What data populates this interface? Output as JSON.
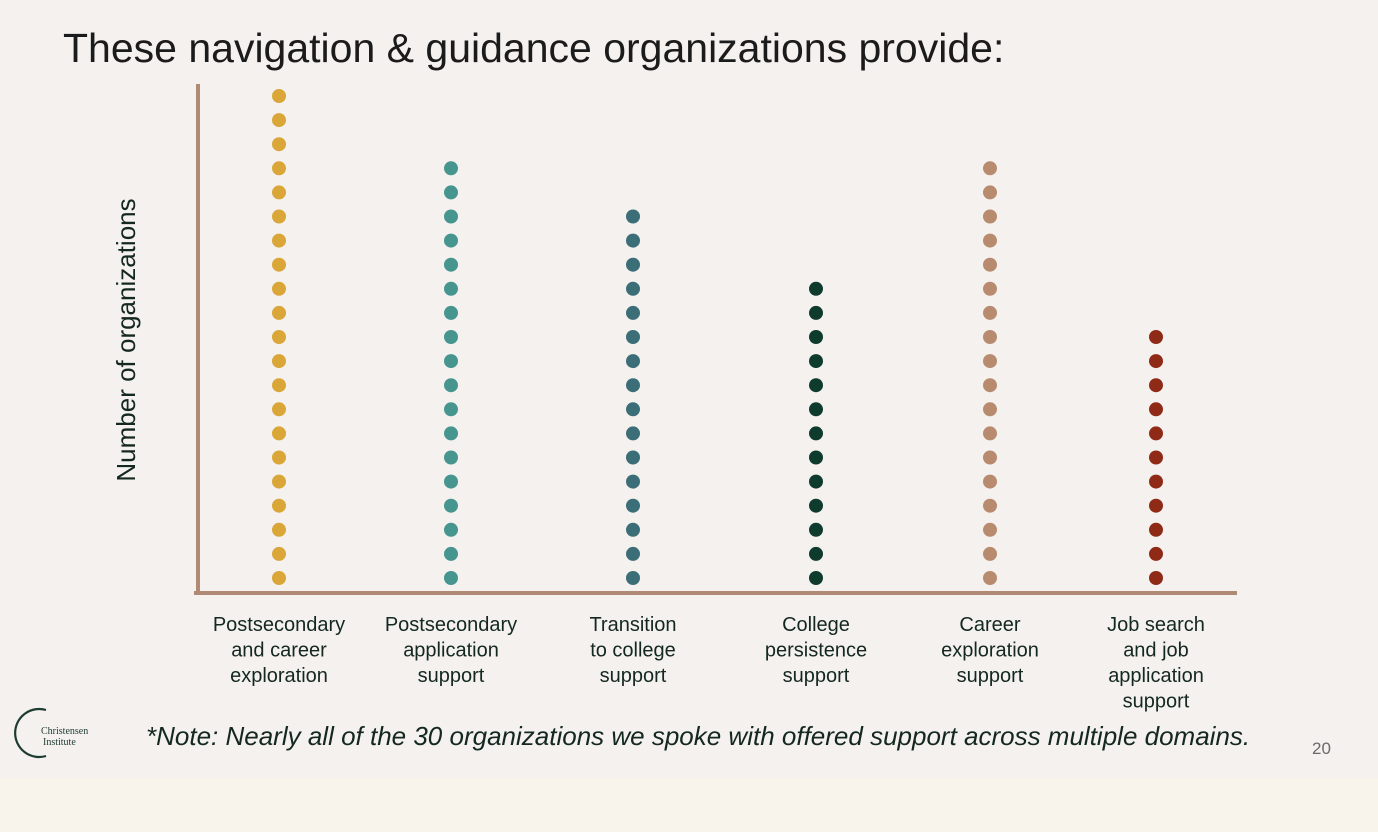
{
  "slide": {
    "title": "These navigation & guidance organizations provide:",
    "note": "*Note: Nearly all of the 30 organizations we spoke with offered support across multiple domains.",
    "page_number": "20",
    "logo": {
      "line1": "Christensen",
      "line2": "Institute"
    }
  },
  "chart_data": {
    "type": "dot",
    "ylabel": "Number of organizations",
    "xlabel": "",
    "ylim": [
      0,
      21
    ],
    "grid": false,
    "axis_color": "#b08a74",
    "categories": [
      [
        "Postsecondary",
        "and career",
        "exploration"
      ],
      [
        "Postsecondary",
        "application",
        "support"
      ],
      [
        "Transition",
        "to college",
        "support"
      ],
      [
        "College",
        "persistence",
        "support"
      ],
      [
        "Career",
        "exploration",
        "support"
      ],
      [
        "Job search",
        "and job",
        "application",
        "support"
      ]
    ],
    "values": [
      21,
      18,
      16,
      13,
      18,
      11
    ],
    "colors": [
      "#d9a637",
      "#47958f",
      "#3c6e78",
      "#0f3b2f",
      "#b88b6f",
      "#8f2a17"
    ]
  }
}
